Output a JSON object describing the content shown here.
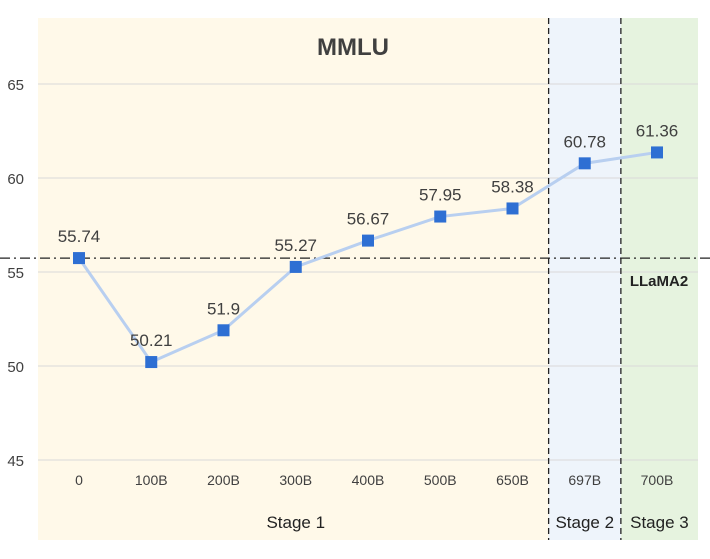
{
  "chart_data": {
    "type": "line",
    "title": "MMLU",
    "categories": [
      "0",
      "100B",
      "200B",
      "300B",
      "400B",
      "500B",
      "650B",
      "697B",
      "700B"
    ],
    "series": [
      {
        "values": [
          55.74,
          50.21,
          51.9,
          55.27,
          56.67,
          57.95,
          58.38,
          60.78,
          61.36
        ]
      }
    ],
    "data_labels": [
      "55.74",
      "50.21",
      "51.9",
      "55.27",
      "56.67",
      "57.95",
      "58.38",
      "60.78",
      "61.36"
    ],
    "ylim": [
      45,
      65
    ],
    "y_ticks": [
      "45",
      "50",
      "55",
      "60",
      "65"
    ],
    "y_tick_values": [
      45,
      50,
      55,
      60,
      65
    ],
    "grid": true,
    "baseline": {
      "label": "LLaMA2",
      "value": 55.74
    },
    "stages": [
      {
        "label": "Stage 1",
        "first_category": 0,
        "last_category": 6,
        "color": "#fff9e9"
      },
      {
        "label": "Stage 2",
        "first_category": 7,
        "last_category": 7,
        "color": "#eef4fb"
      },
      {
        "label": "Stage 3",
        "first_category": 8,
        "last_category": 8,
        "color": "#e6f3df"
      }
    ],
    "colors": {
      "line": "#b8cff0",
      "marker": "#2e6fd3",
      "grid": "#d9d9d9",
      "text": "#404040"
    }
  }
}
